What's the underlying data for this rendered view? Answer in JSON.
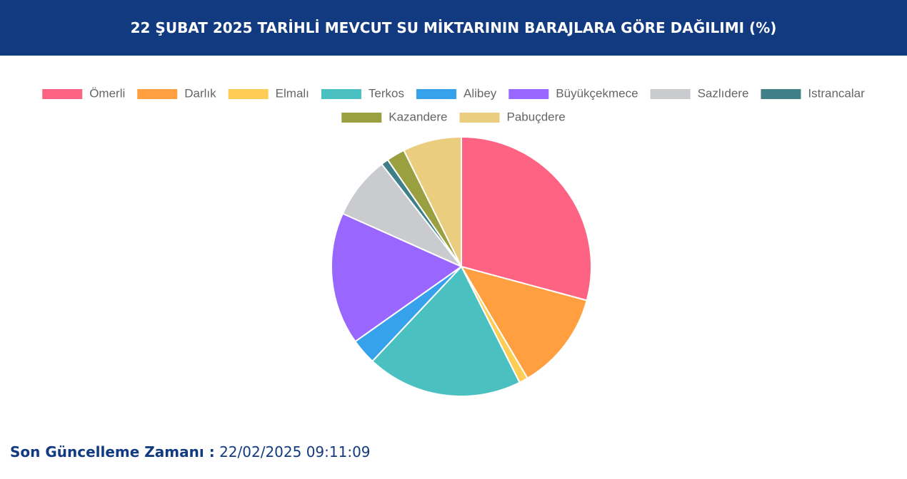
{
  "header": {
    "title": "22 ŞUBAT 2025 TARİHLİ MEVCUT SU MİKTARININ BARAJLARA GÖRE DAĞILIMI (%)"
  },
  "chart_data": {
    "type": "pie",
    "categories": [
      "Ömerli",
      "Darlık",
      "Elmalı",
      "Terkos",
      "Alibey",
      "Büyükçekmece",
      "Sazlıdere",
      "Istrancalar",
      "Kazandere",
      "Pabuçdere"
    ],
    "values": [
      29.2,
      12.3,
      1.1,
      19.4,
      3.2,
      16.5,
      7.8,
      0.9,
      2.3,
      7.3
    ],
    "colors": [
      "#ff6384",
      "#ff9f40",
      "#ffcd56",
      "#4bc0c0",
      "#36a2eb",
      "#9966ff",
      "#c9cbcf",
      "#3f7f88",
      "#9a9f3f",
      "#ebcd80"
    ],
    "legend": "top"
  },
  "footer": {
    "label": "Son Güncelleme Zamanı :",
    "value": "22/02/2025 09:11:09"
  }
}
